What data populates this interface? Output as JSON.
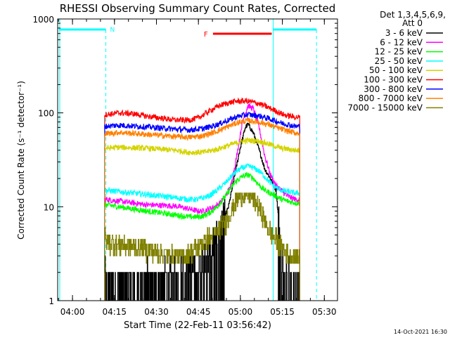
{
  "chart_data": {
    "type": "line",
    "title": "RHESSI Observing Summary Count Rates, Corrected",
    "xlabel": "Start Time (22-Feb-11 03:56:42)",
    "ylabel": "Corrected Count Rate (s⁻¹ detector⁻¹)",
    "y_scale": "log",
    "ylim": [
      1,
      1000
    ],
    "xlim": [
      -2,
      98
    ],
    "x_units": "minutes after 03:56:42",
    "x_ticks": [
      {
        "label": "04:00",
        "x": 3.3
      },
      {
        "label": "04:15",
        "x": 18.3
      },
      {
        "label": "04:30",
        "x": 33.3
      },
      {
        "label": "04:45",
        "x": 48.3
      },
      {
        "label": "05:00",
        "x": 63.3
      },
      {
        "label": "05:15",
        "x": 78.3
      },
      {
        "label": "05:30",
        "x": 93.3
      }
    ],
    "y_ticks": [
      {
        "label": "1",
        "value": 1
      },
      {
        "label": "10",
        "value": 10
      },
      {
        "label": "100",
        "value": 100
      },
      {
        "label": "1000",
        "value": 1000
      }
    ],
    "legend_header": [
      "Det 1,3,4,5,6,9,",
      "Att 0"
    ],
    "series": [
      {
        "name": "3 - 6 keV",
        "color": "#000000",
        "kind": "low",
        "t": [
          15,
          16,
          40,
          48,
          52,
          55,
          57,
          59,
          61,
          63,
          65,
          66,
          68,
          70,
          72,
          74,
          76,
          78,
          80,
          82,
          84
        ],
        "y": [
          2.0,
          1.6,
          1.8,
          2.5,
          3.5,
          5,
          7,
          10,
          20,
          40,
          70,
          76,
          60,
          40,
          25,
          20,
          15,
          3,
          2,
          1.5,
          1.3
        ]
      },
      {
        "name": "6 - 12 keV",
        "color": "#ff00ff",
        "kind": "main",
        "t": [
          15,
          20,
          30,
          40,
          45,
          48,
          50,
          52,
          54,
          56,
          58,
          60,
          62,
          64,
          66,
          68,
          70,
          72,
          74,
          76,
          78,
          80,
          83
        ],
        "y": [
          12,
          11.5,
          10.5,
          10.2,
          9.5,
          9,
          9,
          9.5,
          10,
          11,
          13,
          17,
          35,
          80,
          120,
          110,
          70,
          35,
          22,
          17,
          15,
          13,
          12
        ]
      },
      {
        "name": "12 - 25 keV",
        "color": "#00ff00",
        "kind": "main",
        "t": [
          15,
          20,
          30,
          40,
          45,
          48,
          50,
          52,
          55,
          58,
          60,
          62,
          64,
          66,
          68,
          70,
          72,
          74,
          76,
          78,
          80,
          83
        ],
        "y": [
          10.5,
          10,
          9,
          8.2,
          7.8,
          7.8,
          8,
          8.5,
          10,
          13,
          16,
          19,
          21,
          22,
          20,
          17,
          15,
          14,
          13,
          12,
          11.5,
          11
        ]
      },
      {
        "name": "25 - 50 keV",
        "color": "#00ffff",
        "kind": "main",
        "t": [
          15,
          20,
          30,
          40,
          45,
          48,
          50,
          52,
          55,
          58,
          60,
          62,
          64,
          66,
          68,
          70,
          72,
          74,
          76,
          78,
          80,
          83
        ],
        "y": [
          15,
          14.5,
          13.5,
          12.5,
          12,
          12,
          12.5,
          13,
          15,
          18,
          21,
          24,
          26,
          27,
          26,
          24,
          21,
          18,
          16,
          15,
          14.5,
          14
        ]
      },
      {
        "name": "50 - 100 keV",
        "color": "#d4d400",
        "kind": "main",
        "t": [
          15,
          20,
          30,
          40,
          45,
          50,
          55,
          60,
          63,
          66,
          70,
          74,
          78,
          83
        ],
        "y": [
          42,
          43,
          42,
          40,
          38,
          38,
          41,
          46,
          49,
          51,
          50,
          46,
          42,
          40
        ]
      },
      {
        "name": "100 - 300 keV",
        "color": "#ff0000",
        "kind": "main",
        "t": [
          15,
          20,
          25,
          30,
          35,
          40,
          45,
          48,
          50,
          53,
          56,
          59,
          62,
          65,
          67,
          70,
          73,
          76,
          79,
          83
        ],
        "y": [
          96,
          100,
          98,
          92,
          88,
          84,
          84,
          88,
          95,
          108,
          120,
          128,
          133,
          134,
          132,
          125,
          115,
          105,
          95,
          90
        ]
      },
      {
        "name": "300 - 800 keV",
        "color": "#0000ff",
        "kind": "main",
        "t": [
          15,
          20,
          30,
          40,
          45,
          50,
          55,
          60,
          63,
          66,
          70,
          74,
          78,
          83
        ],
        "y": [
          72,
          74,
          71,
          67,
          66,
          68,
          75,
          86,
          93,
          96,
          93,
          86,
          78,
          72
        ]
      },
      {
        "name": "800 - 7000 keV",
        "color": "#ff8000",
        "kind": "main",
        "t": [
          15,
          20,
          30,
          40,
          45,
          50,
          55,
          60,
          63,
          66,
          70,
          74,
          78,
          83
        ],
        "y": [
          60,
          62,
          59,
          56,
          55,
          57,
          64,
          74,
          80,
          83,
          80,
          74,
          67,
          61
        ]
      },
      {
        "name": "7000 - 15000 keV",
        "color": "#808000",
        "kind": "low",
        "t": [
          15,
          18,
          20,
          25,
          30,
          35,
          40,
          43,
          45,
          48,
          50,
          53,
          56,
          58,
          60,
          62,
          64,
          66,
          68,
          70,
          72,
          74,
          76,
          78,
          80,
          82,
          84
        ],
        "y": [
          4.5,
          4,
          4,
          3.8,
          3.5,
          3.2,
          3,
          3,
          3.2,
          3.7,
          4.2,
          5,
          6,
          7,
          9,
          12,
          14,
          13.5,
          12,
          10,
          7,
          5.5,
          4.5,
          3.8,
          3.2,
          3,
          3
        ]
      }
    ],
    "annotations": [
      {
        "label": "N",
        "kind": "night",
        "color": "#00ffff",
        "segments": [
          [
            -1.5,
            15.2
          ],
          [
            75,
            90.5
          ]
        ],
        "dashed_at": [
          15.2,
          90.5
        ]
      },
      {
        "label": "F",
        "kind": "flare",
        "color": "#ff0000",
        "segments": [
          [
            53.5,
            74.5
          ]
        ]
      }
    ],
    "timestamp": "14-Oct-2021 16:30"
  }
}
